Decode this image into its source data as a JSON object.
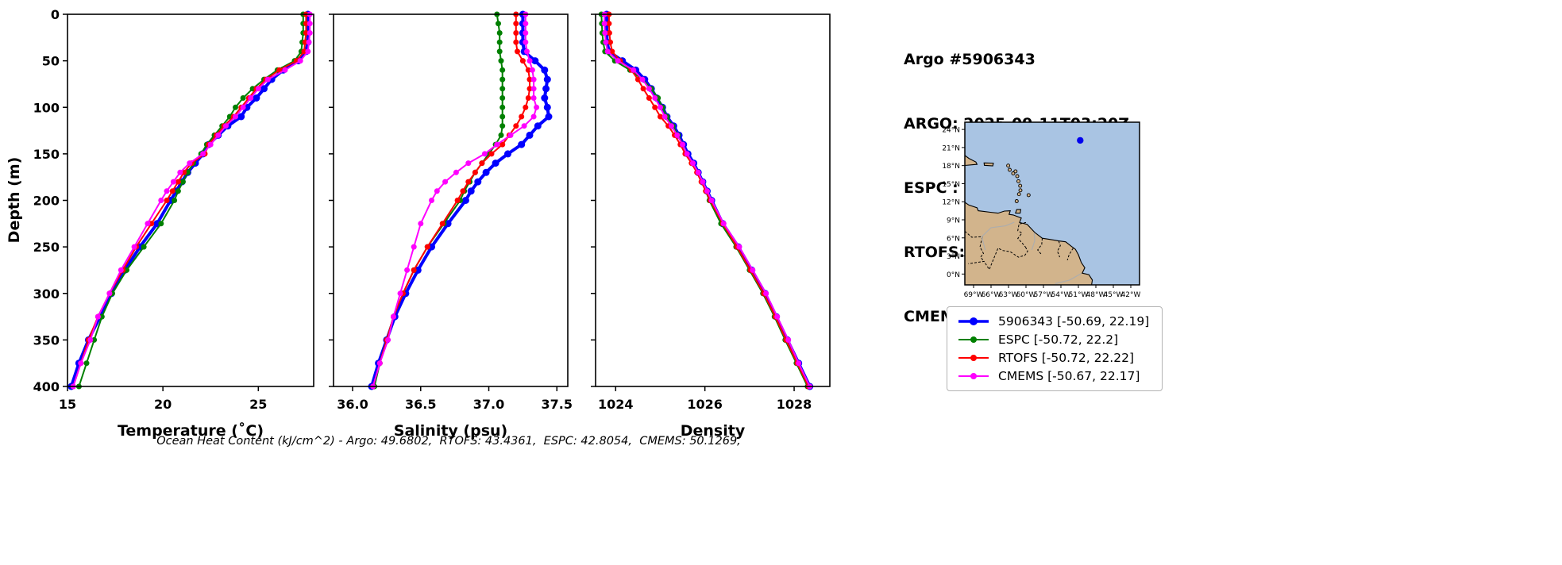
{
  "header": {
    "title": "Argo #5906343",
    "lines": [
      "ARGO: 2025-09-11T03:20Z",
      "ESPC : 2025-09-11T03:00Z",
      "RTOFS: 2025-09-11T06:00Z",
      "CMEMS: 2025-09-11T06:00Z"
    ]
  },
  "footer": {
    "ohc_text": "Ocean Heat Content (kJ/cm^2) - Argo: 49.6802,  RTOFS: 43.4361,  ESPC: 42.8054,  CMEMS: 50.1269,"
  },
  "legend": {
    "entries": [
      {
        "label": "5906343 [-50.69, 22.19]",
        "color": "#0000ff",
        "lw": 3.5,
        "r": 5
      },
      {
        "label": "ESPC [-50.72, 22.2]",
        "color": "#008000",
        "lw": 2,
        "r": 4
      },
      {
        "label": "RTOFS [-50.72, 22.22]",
        "color": "#ff0000",
        "lw": 2,
        "r": 4
      },
      {
        "label": "CMEMS [-50.67, 22.17]",
        "color": "#ff00ff",
        "lw": 2,
        "r": 4
      }
    ]
  },
  "map": {
    "ocean_color": "#a9c4e3",
    "land_color": "#d2b48c",
    "lat_labels": [
      "24°N",
      "21°N",
      "18°N",
      "15°N",
      "12°N",
      "9°N",
      "6°N",
      "3°N",
      "0°N"
    ],
    "lat_values": [
      24,
      21,
      18,
      15,
      12,
      9,
      6,
      3,
      0
    ],
    "lon_labels": [
      "69°W",
      "66°W",
      "63°W",
      "60°W",
      "57°W",
      "54°W",
      "51°W",
      "48°W",
      "45°W",
      "42°W"
    ],
    "lon_values": [
      -69,
      -66,
      -63,
      -60,
      -57,
      -54,
      -51,
      -48,
      -45,
      -42
    ],
    "marker": {
      "lon": -50.69,
      "lat": 22.19,
      "color": "#0000ee"
    }
  },
  "chart_data": [
    {
      "type": "line",
      "xlabel": "Temperature (˚C)",
      "ylabel": "Depth (m)",
      "xlim": [
        15,
        27.9
      ],
      "ylim": [
        400,
        0
      ],
      "xticks": [
        15,
        20,
        25
      ],
      "xtick_labels": [
        "15",
        "20",
        "25"
      ],
      "yticks": [
        0,
        50,
        100,
        150,
        200,
        250,
        300,
        350,
        400
      ],
      "grid": false,
      "depths": [
        0,
        10,
        20,
        30,
        40,
        50,
        60,
        70,
        80,
        90,
        100,
        110,
        120,
        130,
        140,
        150,
        160,
        170,
        180,
        190,
        200,
        225,
        250,
        275,
        300,
        325,
        350,
        375,
        400
      ],
      "series": [
        {
          "name": "5906343",
          "color": "#0000ff",
          "linewidth": 4,
          "marker_r": 4.5,
          "values": [
            27.6,
            27.6,
            27.6,
            27.6,
            27.5,
            27.1,
            26.3,
            25.7,
            25.3,
            24.9,
            24.4,
            24.1,
            23.4,
            22.9,
            22.4,
            22.1,
            21.7,
            21.3,
            21.0,
            20.7,
            20.4,
            19.7,
            18.8,
            18.0,
            17.3,
            16.7,
            16.1,
            15.6,
            15.2
          ]
        },
        {
          "name": "ESPC",
          "color": "#008000",
          "linewidth": 2,
          "marker_r": 3.5,
          "values": [
            27.35,
            27.35,
            27.35,
            27.3,
            27.25,
            26.9,
            26.0,
            25.3,
            24.7,
            24.2,
            23.8,
            23.5,
            23.1,
            22.7,
            22.3,
            22.0,
            21.6,
            21.3,
            21.05,
            20.8,
            20.6,
            19.9,
            19.0,
            18.1,
            17.35,
            16.8,
            16.4,
            16.0,
            15.6
          ]
        },
        {
          "name": "RTOFS",
          "color": "#ff0000",
          "linewidth": 2,
          "marker_r": 3.5,
          "values": [
            27.5,
            27.5,
            27.5,
            27.45,
            27.4,
            27.0,
            26.1,
            25.4,
            24.9,
            24.5,
            24.1,
            23.7,
            23.2,
            22.8,
            22.4,
            22.2,
            21.5,
            21.1,
            20.8,
            20.5,
            20.2,
            19.4,
            18.6,
            17.9,
            17.2,
            16.6,
            16.1,
            15.7,
            15.3
          ]
        },
        {
          "name": "CMEMS",
          "color": "#ff00ff",
          "linewidth": 2,
          "marker_r": 3.5,
          "values": [
            27.7,
            27.7,
            27.7,
            27.65,
            27.6,
            27.2,
            26.4,
            25.5,
            25.0,
            24.6,
            24.2,
            23.8,
            23.3,
            22.9,
            22.5,
            22.1,
            21.4,
            20.9,
            20.55,
            20.2,
            19.9,
            19.2,
            18.5,
            17.8,
            17.2,
            16.6,
            16.2,
            15.7,
            15.3
          ]
        }
      ]
    },
    {
      "type": "line",
      "xlabel": "Salinity (psu)",
      "ylabel": "",
      "xlim": [
        35.86,
        37.58
      ],
      "ylim": [
        400,
        0
      ],
      "xticks": [
        36.0,
        36.5,
        37.0,
        37.5
      ],
      "xtick_labels": [
        "36.0",
        "36.5",
        "37.0",
        "37.5"
      ],
      "yticks": [
        0,
        50,
        100,
        150,
        200,
        250,
        300,
        350,
        400
      ],
      "grid": false,
      "depths": [
        0,
        10,
        20,
        30,
        40,
        50,
        60,
        70,
        80,
        90,
        100,
        110,
        120,
        130,
        140,
        150,
        160,
        170,
        180,
        190,
        200,
        225,
        250,
        275,
        300,
        325,
        350,
        375,
        400
      ],
      "series": [
        {
          "name": "5906343",
          "color": "#0000ff",
          "linewidth": 4,
          "marker_r": 4.5,
          "values": [
            37.25,
            37.25,
            37.25,
            37.25,
            37.26,
            37.34,
            37.41,
            37.43,
            37.42,
            37.41,
            37.43,
            37.44,
            37.36,
            37.3,
            37.24,
            37.14,
            37.05,
            36.98,
            36.92,
            36.87,
            36.83,
            36.7,
            36.58,
            36.48,
            36.39,
            36.31,
            36.25,
            36.19,
            36.14
          ]
        },
        {
          "name": "ESPC",
          "color": "#008000",
          "linewidth": 2,
          "marker_r": 3.5,
          "values": [
            37.06,
            37.07,
            37.08,
            37.08,
            37.08,
            37.09,
            37.1,
            37.1,
            37.1,
            37.1,
            37.1,
            37.1,
            37.1,
            37.09,
            37.05,
            37.0,
            36.95,
            36.9,
            36.86,
            36.82,
            36.79,
            36.67,
            36.55,
            36.45,
            36.37,
            36.3,
            36.25,
            36.2,
            36.16
          ]
        },
        {
          "name": "RTOFS",
          "color": "#ff0000",
          "linewidth": 2,
          "marker_r": 3.5,
          "values": [
            37.2,
            37.2,
            37.2,
            37.2,
            37.21,
            37.25,
            37.29,
            37.3,
            37.3,
            37.29,
            37.27,
            37.24,
            37.2,
            37.15,
            37.1,
            37.02,
            36.95,
            36.9,
            36.85,
            36.81,
            36.77,
            36.66,
            36.55,
            36.45,
            36.37,
            36.3,
            36.25,
            36.2,
            36.15
          ]
        },
        {
          "name": "CMEMS",
          "color": "#ff00ff",
          "linewidth": 2,
          "marker_r": 3.5,
          "values": [
            37.27,
            37.27,
            37.27,
            37.27,
            37.28,
            37.3,
            37.32,
            37.33,
            37.33,
            37.33,
            37.35,
            37.33,
            37.26,
            37.16,
            37.06,
            36.97,
            36.85,
            36.76,
            36.68,
            36.62,
            36.58,
            36.5,
            36.45,
            36.4,
            36.35,
            36.3,
            36.26,
            36.2,
            36.15
          ]
        }
      ]
    },
    {
      "type": "line",
      "xlabel": "Density",
      "ylabel": "",
      "xlim": [
        1023.55,
        1028.8
      ],
      "ylim": [
        400,
        0
      ],
      "xticks": [
        1024,
        1026,
        1028
      ],
      "xtick_labels": [
        "1024",
        "1026",
        "1028"
      ],
      "yticks": [
        0,
        50,
        100,
        150,
        200,
        250,
        300,
        350,
        400
      ],
      "grid": false,
      "depths": [
        0,
        10,
        20,
        30,
        40,
        50,
        60,
        70,
        80,
        90,
        100,
        110,
        120,
        130,
        140,
        150,
        160,
        170,
        180,
        190,
        200,
        225,
        250,
        275,
        300,
        325,
        350,
        375,
        400
      ],
      "series": [
        {
          "name": "5906343",
          "color": "#0000ff",
          "linewidth": 4,
          "marker_r": 4.5,
          "values": [
            1023.8,
            1023.8,
            1023.8,
            1023.81,
            1023.85,
            1024.15,
            1024.45,
            1024.65,
            1024.8,
            1024.92,
            1025.05,
            1025.15,
            1025.3,
            1025.42,
            1025.52,
            1025.62,
            1025.75,
            1025.85,
            1025.95,
            1026.05,
            1026.15,
            1026.4,
            1026.75,
            1027.05,
            1027.35,
            1027.6,
            1027.85,
            1028.1,
            1028.35
          ]
        },
        {
          "name": "ESPC",
          "color": "#008000",
          "linewidth": 2,
          "marker_r": 3.5,
          "values": [
            1023.68,
            1023.69,
            1023.7,
            1023.72,
            1023.76,
            1023.98,
            1024.32,
            1024.6,
            1024.8,
            1024.95,
            1025.05,
            1025.15,
            1025.28,
            1025.4,
            1025.5,
            1025.6,
            1025.72,
            1025.83,
            1025.93,
            1026.02,
            1026.1,
            1026.36,
            1026.7,
            1027.0,
            1027.3,
            1027.56,
            1027.8,
            1028.05,
            1028.3
          ]
        },
        {
          "name": "RTOFS",
          "color": "#ff0000",
          "linewidth": 2,
          "marker_r": 3.5,
          "values": [
            1023.85,
            1023.85,
            1023.86,
            1023.88,
            1023.92,
            1024.1,
            1024.35,
            1024.5,
            1024.62,
            1024.75,
            1024.88,
            1025.0,
            1025.18,
            1025.32,
            1025.45,
            1025.56,
            1025.7,
            1025.82,
            1025.92,
            1026.02,
            1026.12,
            1026.4,
            1026.72,
            1027.02,
            1027.32,
            1027.58,
            1027.82,
            1028.07,
            1028.32
          ]
        },
        {
          "name": "CMEMS",
          "color": "#ff00ff",
          "linewidth": 2,
          "marker_r": 3.5,
          "values": [
            1023.75,
            1023.75,
            1023.76,
            1023.78,
            1023.82,
            1024.05,
            1024.4,
            1024.6,
            1024.75,
            1024.88,
            1025.0,
            1025.1,
            1025.25,
            1025.38,
            1025.5,
            1025.6,
            1025.73,
            1025.85,
            1025.95,
            1026.05,
            1026.15,
            1026.42,
            1026.77,
            1027.07,
            1027.37,
            1027.62,
            1027.87,
            1028.1,
            1028.35
          ]
        }
      ]
    }
  ]
}
